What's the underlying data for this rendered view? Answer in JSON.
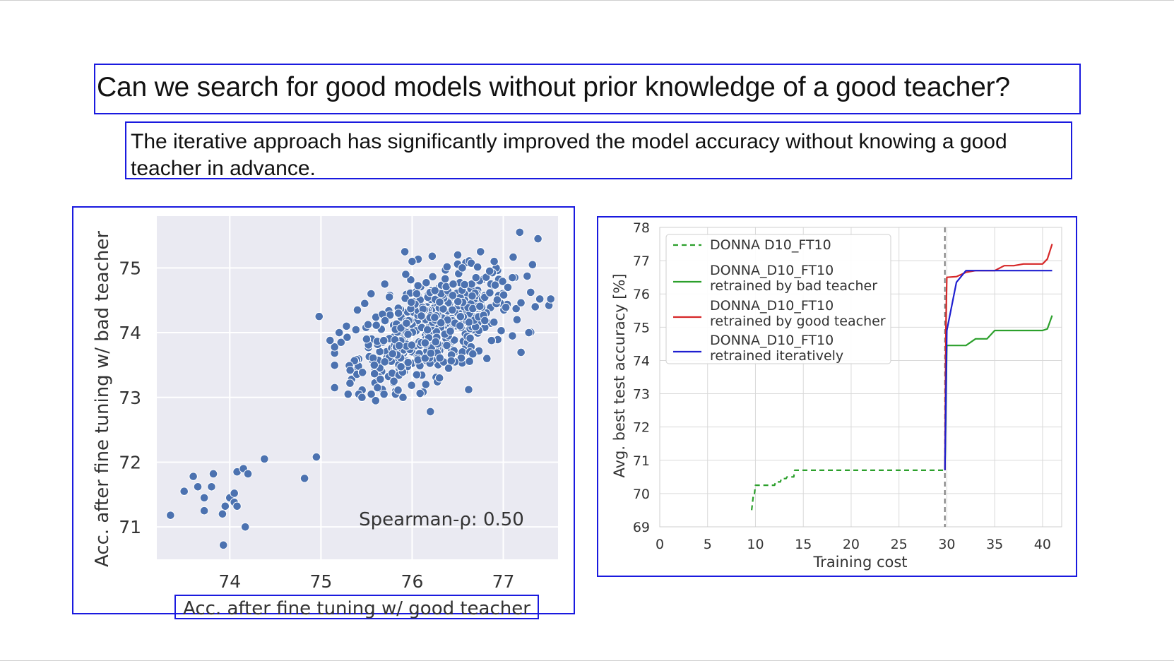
{
  "title": "Can we search for good models without prior knowledge of a good teacher?",
  "subtitle": "The iterative approach has significantly improved the model accuracy without knowing a good teacher in advance.",
  "colors": {
    "box_border": "#1a1adf",
    "scatter_bg": "#eaeaf2",
    "scatter_point": "#4c72b0",
    "line_bad": "#2ca02c",
    "line_good": "#d62728",
    "line_iter": "#1f1fd0"
  },
  "chart_data": [
    {
      "type": "scatter",
      "xlabel": "Acc. after fine tuning w/ good teacher",
      "ylabel": "Acc. after fine tuning w/ bad teacher",
      "xlim": [
        73.2,
        77.6
      ],
      "ylim": [
        70.5,
        75.8
      ],
      "xticks": [
        74,
        75,
        76,
        77
      ],
      "yticks": [
        71,
        72,
        73,
        74,
        75
      ],
      "grid": true,
      "annotation": "Spearman-ρ: 0.50",
      "points_low": [
        [
          73.35,
          71.18
        ],
        [
          73.5,
          71.55
        ],
        [
          73.6,
          71.78
        ],
        [
          73.65,
          71.62
        ],
        [
          73.72,
          71.45
        ],
        [
          73.72,
          71.25
        ],
        [
          73.8,
          71.62
        ],
        [
          73.82,
          71.82
        ],
        [
          73.92,
          71.2
        ],
        [
          73.93,
          70.72
        ],
        [
          73.95,
          71.32
        ],
        [
          74.0,
          71.45
        ],
        [
          74.05,
          71.38
        ],
        [
          74.05,
          71.52
        ],
        [
          74.08,
          71.85
        ],
        [
          74.08,
          71.32
        ],
        [
          74.15,
          71.9
        ],
        [
          74.17,
          71.0
        ],
        [
          74.2,
          71.82
        ],
        [
          74.38,
          72.05
        ],
        [
          74.82,
          71.75
        ],
        [
          74.95,
          72.08
        ],
        [
          74.98,
          74.25
        ]
      ],
      "points_high": [
        [
          75.1,
          73.88
        ],
        [
          75.2,
          74.0
        ],
        [
          75.22,
          73.85
        ],
        [
          75.28,
          74.1
        ],
        [
          75.32,
          73.42
        ],
        [
          75.4,
          74.35
        ],
        [
          75.45,
          73.0
        ],
        [
          75.48,
          74.45
        ],
        [
          75.5,
          73.9
        ],
        [
          75.55,
          74.6
        ],
        [
          75.6,
          72.95
        ],
        [
          75.62,
          73.15
        ],
        [
          75.7,
          74.75
        ],
        [
          75.9,
          73.0
        ],
        [
          75.92,
          75.25
        ],
        [
          75.93,
          74.9
        ],
        [
          76.0,
          75.1
        ],
        [
          76.2,
          72.78
        ],
        [
          76.22,
          75.18
        ],
        [
          76.3,
          73.3
        ],
        [
          76.5,
          75.2
        ],
        [
          76.62,
          73.12
        ],
        [
          76.75,
          75.25
        ],
        [
          76.82,
          73.6
        ],
        [
          76.9,
          75.1
        ],
        [
          77.1,
          73.95
        ],
        [
          77.15,
          74.2
        ],
        [
          77.18,
          75.55
        ],
        [
          77.28,
          74.0
        ],
        [
          77.32,
          75.05
        ],
        [
          77.35,
          74.4
        ],
        [
          77.38,
          75.45
        ],
        [
          77.4,
          74.52
        ],
        [
          77.5,
          74.42
        ],
        [
          77.52,
          74.52
        ],
        [
          76.55,
          75.0
        ],
        [
          76.7,
          74.85
        ],
        [
          76.85,
          74.95
        ],
        [
          77.05,
          74.7
        ],
        [
          77.1,
          74.85
        ],
        [
          75.75,
          74.55
        ],
        [
          75.85,
          74.3
        ],
        [
          76.05,
          74.6
        ],
        [
          76.25,
          74.65
        ],
        [
          76.45,
          74.75
        ],
        [
          75.7,
          73.55
        ],
        [
          75.8,
          73.25
        ],
        [
          76.05,
          73.35
        ],
        [
          76.15,
          73.2
        ],
        [
          76.4,
          73.45
        ]
      ],
      "cluster": {
        "center": [
          76.25,
          74.08
        ],
        "spread": [
          0.42,
          0.42
        ],
        "count": 520
      }
    },
    {
      "type": "line",
      "xlabel": "Training cost",
      "ylabel": "Avg. best test accuracy [%]",
      "xlim": [
        0,
        42
      ],
      "ylim": [
        69,
        78
      ],
      "xticks": [
        0,
        5,
        10,
        15,
        20,
        25,
        30,
        35,
        40
      ],
      "yticks": [
        69,
        70,
        71,
        72,
        73,
        74,
        75,
        76,
        77,
        78
      ],
      "grid": true,
      "legend_position": "top-left",
      "vline_x": 29.8,
      "series": [
        {
          "name": "DONNA D10_FT10",
          "style": "dashed",
          "color_key": "line_bad",
          "x": [
            9.6,
            9.8,
            9.9,
            10.0,
            12.0,
            12.1,
            12.6,
            12.7,
            13.2,
            13.3,
            14.0,
            14.1,
            29.5,
            29.8
          ],
          "y": [
            69.5,
            70.0,
            70.0,
            70.25,
            70.25,
            70.35,
            70.35,
            70.45,
            70.45,
            70.5,
            70.5,
            70.7,
            70.7,
            70.7
          ]
        },
        {
          "name": "DONNA_D10_FT10\nretrained by bad teacher",
          "style": "solid",
          "color_key": "line_bad",
          "x": [
            29.8,
            30.0,
            32.0,
            33.0,
            33.3,
            34.2,
            35.0,
            37.0,
            40.0,
            40.5,
            41.0
          ],
          "y": [
            70.7,
            74.45,
            74.45,
            74.65,
            74.65,
            74.65,
            74.9,
            74.9,
            74.9,
            74.95,
            75.35
          ]
        },
        {
          "name": "DONNA_D10_FT10\nretrained by good teacher",
          "style": "solid",
          "color_key": "line_good",
          "x": [
            29.8,
            29.9,
            30.0,
            31.0,
            32.0,
            33.0,
            34.0,
            35.0,
            36.0,
            37.0,
            38.0,
            39.0,
            40.0,
            40.5,
            41.0
          ],
          "y": [
            70.7,
            75.0,
            76.5,
            76.52,
            76.65,
            76.7,
            76.7,
            76.7,
            76.85,
            76.85,
            76.9,
            76.9,
            76.9,
            77.05,
            77.5
          ]
        },
        {
          "name": "DONNA_D10_FT10\nretrained iteratively",
          "style": "solid",
          "color_key": "line_iter",
          "x": [
            29.8,
            30.0,
            31.0,
            32.0,
            33.0,
            41.0
          ],
          "y": [
            70.7,
            74.9,
            76.35,
            76.7,
            76.7,
            76.7
          ]
        }
      ]
    }
  ]
}
